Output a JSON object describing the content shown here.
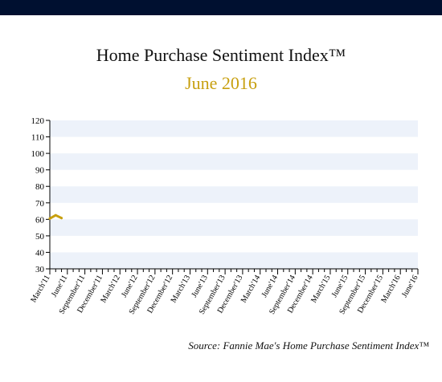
{
  "colors": {
    "top_bar": "#001030",
    "band": "#edf2fa",
    "axis": "#000000",
    "series": "#c8a010",
    "subtitle": "#c8a010"
  },
  "header": {
    "title": "Home Purchase Sentiment Index™",
    "subtitle": "June 2016"
  },
  "source": "Source: Fannie Mae's Home Purchase Sentiment Index™",
  "chart_data": {
    "type": "line",
    "title": "Home Purchase Sentiment Index™",
    "subtitle": "June 2016",
    "xlabel": "",
    "ylabel": "",
    "ylim": [
      30,
      120
    ],
    "yticks": [
      30,
      40,
      50,
      60,
      70,
      80,
      90,
      100,
      110,
      120
    ],
    "grid": "alternating horizontal bands",
    "x_tick_labels": [
      "March'11",
      "June'11",
      "September'11",
      "December'11",
      "March'12",
      "June'12",
      "September'12",
      "December'12",
      "March'13",
      "June'13",
      "September'13",
      "December'13",
      "March'14",
      "June'14",
      "September'14",
      "December'14",
      "March'15",
      "June'15",
      "September'15",
      "December'15",
      "March'16",
      "June'16"
    ],
    "x_months": [
      "2011-03",
      "2011-04",
      "2011-05",
      "2011-06",
      "2011-07",
      "2011-08",
      "2011-09",
      "2011-10",
      "2011-11",
      "2011-12",
      "2012-01",
      "2012-02",
      "2012-03",
      "2012-04",
      "2012-05",
      "2012-06",
      "2012-07",
      "2012-08",
      "2012-09",
      "2012-10",
      "2012-11",
      "2012-12",
      "2013-01",
      "2013-02",
      "2013-03",
      "2013-04",
      "2013-05",
      "2013-06",
      "2013-07",
      "2013-08",
      "2013-09",
      "2013-10",
      "2013-11",
      "2013-12",
      "2014-01",
      "2014-02",
      "2014-03",
      "2014-04",
      "2014-05",
      "2014-06",
      "2014-07",
      "2014-08",
      "2014-09",
      "2014-10",
      "2014-11",
      "2014-12",
      "2015-01",
      "2015-02",
      "2015-03",
      "2015-04",
      "2015-05",
      "2015-06",
      "2015-07",
      "2015-08",
      "2015-09",
      "2015-10",
      "2015-11",
      "2015-12",
      "2016-01",
      "2016-02",
      "2016-03",
      "2016-04",
      "2016-05",
      "2016-06"
    ],
    "series": [
      {
        "x": [
          "2011-03",
          "2011-04",
          "2011-05"
        ],
        "values": [
          60.5,
          62.5,
          60.8
        ]
      }
    ]
  }
}
